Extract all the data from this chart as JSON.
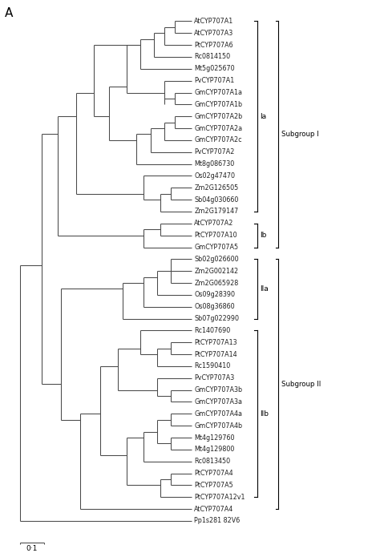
{
  "title": "A",
  "scale_bar_label": "0·1",
  "taxa": [
    "AtCYP707A1",
    "AtCYP707A3",
    "PtCYP707A6",
    "Rc0814150",
    "Mt5g025670",
    "PvCYP707A1",
    "GmCYP707A1a",
    "GmCYP707A1b",
    "GmCYP707A2b",
    "GmCYP707A2a",
    "GmCYP707A2c",
    "PvCYP707A2",
    "Mt8g086730",
    "Os02g47470",
    "Zm2G126505",
    "Sb04g030660",
    "Zm2G179147",
    "AtCYP707A2",
    "PtCYP707A10",
    "GmCYP707A5",
    "Sb02g026600",
    "Zm2G002142",
    "Zm2G065928",
    "Os09g28390",
    "Os08g36860",
    "Sb07g022990",
    "Rc1407690",
    "PtCYP707A13",
    "PtCYP707A14",
    "Rc1590410",
    "PvCYP707A3",
    "GmCYP707A3b",
    "GmCYP707A3a",
    "GmCYP707A4a",
    "GmCYP707A4b",
    "Mt4g129760",
    "Mt4g129800",
    "Rc0813450",
    "PtCYP707A4",
    "PtCYP707A5",
    "PtCYP707A12v1",
    "AtCYP707A4",
    "Pp1s281 82V6"
  ],
  "line_color": "#4a4a4a",
  "background_color": "#ffffff",
  "font_size": 5.8,
  "label_color": "#222222",
  "lw": 0.75
}
